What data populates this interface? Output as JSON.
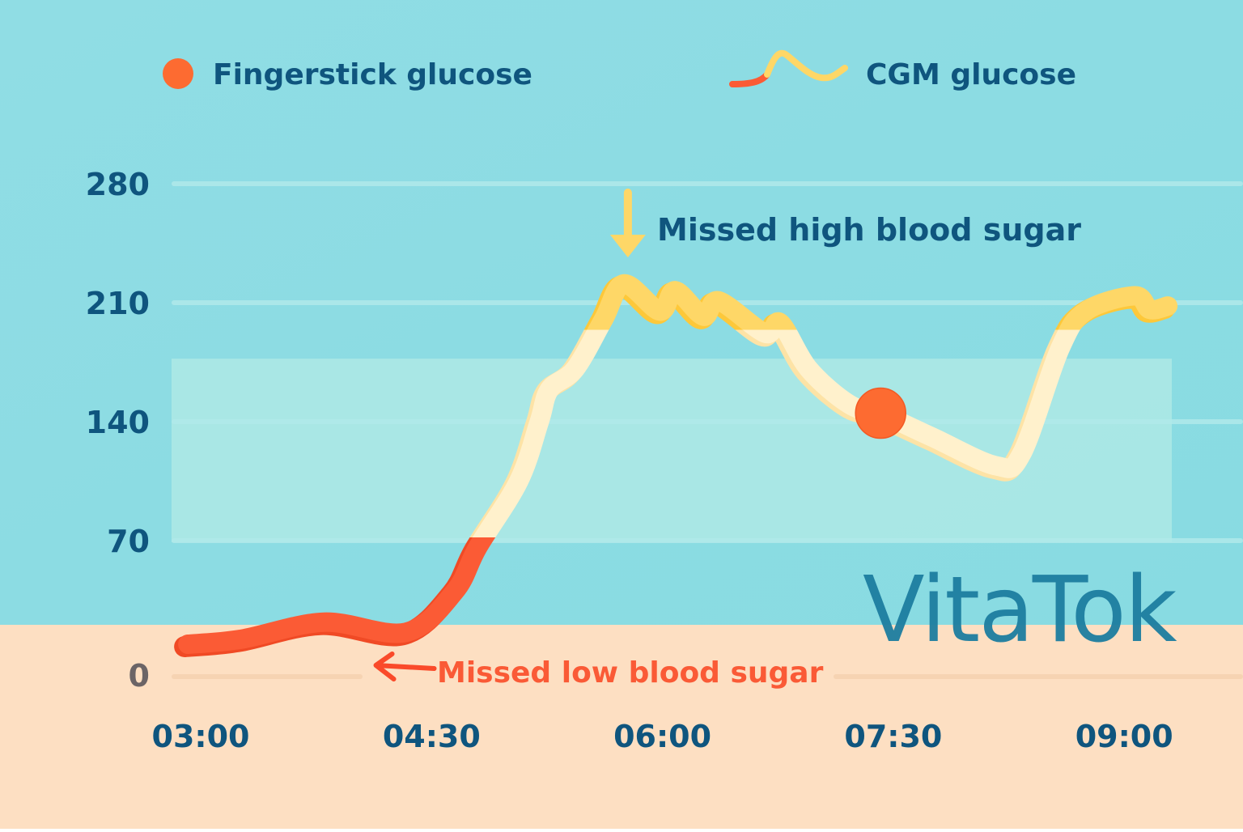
{
  "chart_data": {
    "type": "line",
    "title": "",
    "xlabel": "",
    "ylabel": "",
    "x_ticks": [
      "03:00",
      "04:30",
      "06:00",
      "07:30",
      "09:00"
    ],
    "x_tick_minutes": [
      180,
      270,
      360,
      450,
      540
    ],
    "y_ticks": [
      0,
      70,
      140,
      210,
      280
    ],
    "ylim": [
      0,
      290
    ],
    "xlim_minutes": [
      170,
      555
    ],
    "grid": true,
    "legend_position": "top",
    "target_range": [
      70,
      178
    ],
    "low_threshold": 70,
    "high_threshold": 195,
    "series": [
      {
        "name": "CGM glucose",
        "kind": "line",
        "x_minutes": [
          175,
          196,
          228,
          260,
          279,
          288,
          304,
          312,
          316,
          326,
          337,
          345,
          359,
          365,
          376,
          382,
          400,
          406,
          417,
          433,
          446,
          465,
          490,
          500,
          515,
          525,
          544,
          550,
          557
        ],
        "values": [
          10,
          13,
          23,
          17,
          41,
          67,
          106,
          141,
          160,
          172,
          201,
          222,
          206,
          218,
          203,
          212,
          193,
          199,
          172,
          151,
          145,
          132,
          115,
          122,
          184,
          206,
          215,
          207,
          209
        ]
      },
      {
        "name": "Fingerstick glucose",
        "kind": "point",
        "x_minutes": [
          446
        ],
        "values": [
          145
        ]
      }
    ],
    "annotations": [
      {
        "text": "Missed high blood sugar",
        "target_minutes": 344,
        "target_value": 222
      },
      {
        "text": "Missed low blood sugar",
        "target_minutes": 242,
        "target_value": 0
      }
    ]
  },
  "legend": {
    "fingerstick_label": "Fingerstick glucose",
    "cgm_label": "CGM glucose"
  },
  "brand": "VitaTok",
  "colors": {
    "sky": "#8ddde3",
    "sand": "#fddfc2",
    "low": "#fb5b35",
    "high": "#fed767",
    "in_range": "#fff3cf",
    "fingerstick": "#fd6b31",
    "text_dark": "#0f557e",
    "low_text": "#fa5a36",
    "brand": "#1d7ea0"
  }
}
